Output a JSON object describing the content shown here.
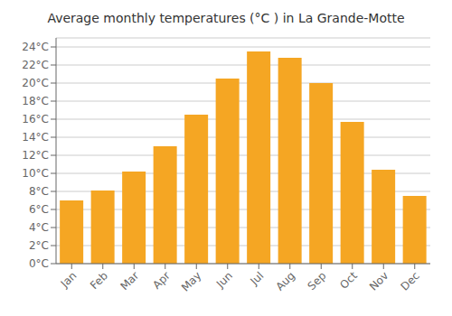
{
  "chart_data": {
    "type": "bar",
    "title": "Average monthly temperatures (°C ) in La Grande-Motte",
    "categories": [
      "Jan",
      "Feb",
      "Mar",
      "Apr",
      "May",
      "Jun",
      "Jul",
      "Aug",
      "Sep",
      "Oct",
      "Nov",
      "Dec"
    ],
    "values": [
      7.0,
      8.1,
      10.2,
      13.0,
      16.5,
      20.5,
      23.5,
      22.8,
      20.0,
      15.7,
      10.4,
      7.5
    ],
    "color": "#F5A623",
    "ylim": [
      0,
      25
    ],
    "yticks": [
      {
        "value": 0,
        "label": "0°C"
      },
      {
        "value": 2,
        "label": "2°C"
      },
      {
        "value": 4,
        "label": "4°C"
      },
      {
        "value": 6,
        "label": "6°C"
      },
      {
        "value": 8,
        "label": "8°C"
      },
      {
        "value": 10,
        "label": "10°C"
      },
      {
        "value": 12,
        "label": "12°C"
      },
      {
        "value": 14,
        "label": "14°C"
      },
      {
        "value": 16,
        "label": "16°C"
      },
      {
        "value": 18,
        "label": "18°C"
      },
      {
        "value": 20,
        "label": "20°C"
      },
      {
        "value": 22,
        "label": "22°C"
      },
      {
        "value": 24,
        "label": "24°C"
      }
    ],
    "grid": true
  }
}
